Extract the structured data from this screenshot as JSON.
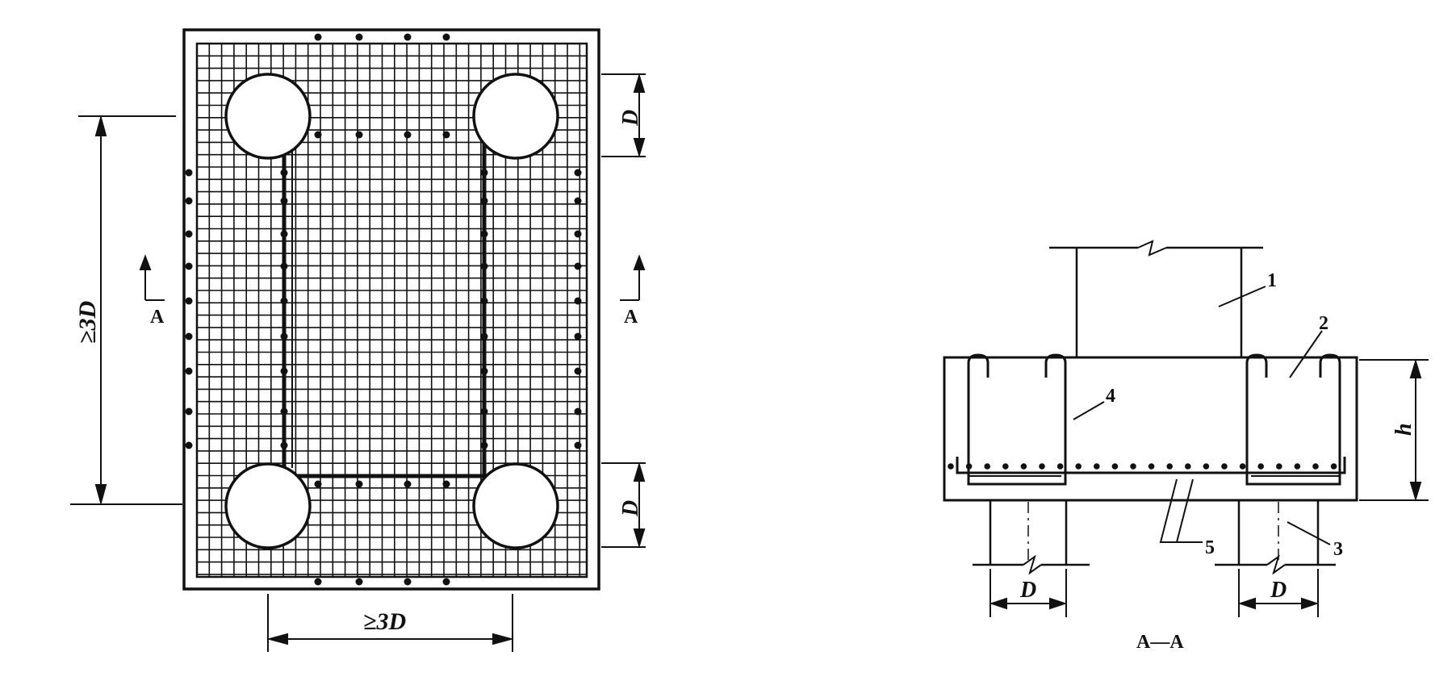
{
  "plan": {
    "dim_vertical": "≥3D",
    "dim_horizontal": "≥3D",
    "dim_top_right": "D",
    "dim_bottom_right": "D",
    "section_mark_left": "A",
    "section_mark_right": "A"
  },
  "section": {
    "title": "A—A",
    "callouts": [
      "1",
      "2",
      "3",
      "4",
      "5"
    ],
    "dim_h": "h",
    "dim_left_pile": "D",
    "dim_right_pile": "D"
  },
  "colors": {
    "ink": "#111111",
    "paper": "#ffffff"
  }
}
